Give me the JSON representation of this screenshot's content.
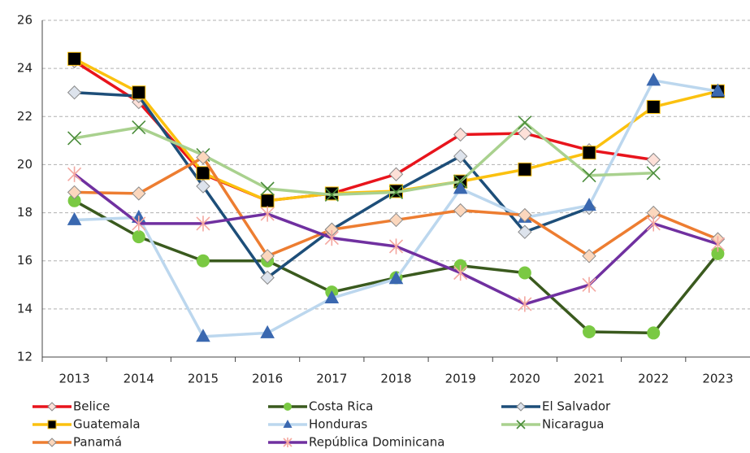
{
  "chart_data": {
    "type": "line",
    "categories": [
      "2013",
      "2014",
      "2015",
      "2016",
      "2017",
      "2018",
      "2019",
      "2020",
      "2021",
      "2022",
      "2023"
    ],
    "ylim": [
      12,
      26
    ],
    "yticks": [
      12,
      14,
      16,
      18,
      20,
      22,
      24,
      26
    ],
    "grid": true,
    "legend": "bottom",
    "series": [
      {
        "name": "Belice",
        "color": "#e8141c",
        "marker": "diamond",
        "marker_color": "#fde0d8",
        "values": [
          24.3,
          22.6,
          19.6,
          18.5,
          18.8,
          19.6,
          21.25,
          21.3,
          20.6,
          20.2,
          null
        ]
      },
      {
        "name": "Costa Rica",
        "color": "#3a5a1e",
        "marker": "circle",
        "marker_color": "#7ac943",
        "values": [
          18.5,
          17.0,
          16.0,
          16.0,
          14.7,
          15.3,
          15.8,
          15.5,
          13.05,
          13.0,
          16.3
        ]
      },
      {
        "name": "El Salvador",
        "color": "#1d4e79",
        "marker": "diamond",
        "marker_color": "#dde3ec",
        "values": [
          23.0,
          22.85,
          19.1,
          15.3,
          17.3,
          18.9,
          20.35,
          17.2,
          18.2,
          null,
          null
        ]
      },
      {
        "name": "Guatemala",
        "color": "#fbc10f",
        "marker": "square",
        "marker_color": "#000000",
        "values": [
          24.4,
          23.0,
          19.65,
          18.5,
          18.8,
          18.9,
          19.3,
          19.8,
          20.5,
          22.4,
          23.05
        ]
      },
      {
        "name": "Honduras",
        "color": "#bcd7ee",
        "marker": "triangle",
        "marker_color": "#3a68b0",
        "values": [
          17.7,
          17.8,
          12.85,
          13.0,
          14.45,
          15.25,
          19.0,
          17.8,
          18.3,
          23.5,
          23.05
        ]
      },
      {
        "name": "Nicaragua",
        "color": "#a9d18e",
        "marker": "x",
        "marker_color": "#4a8c3a",
        "values": [
          21.1,
          21.55,
          20.4,
          19.0,
          18.75,
          18.85,
          19.3,
          21.75,
          19.55,
          19.65,
          null
        ]
      },
      {
        "name": "Panamá",
        "color": "#ed7d31",
        "marker": "diamond",
        "marker_color": "#fbd7bd",
        "values": [
          18.85,
          18.8,
          20.3,
          16.2,
          17.3,
          17.7,
          18.1,
          17.9,
          16.2,
          18.0,
          16.9
        ]
      },
      {
        "name": "República Dominicana",
        "color": "#7030a0",
        "marker": "asterisk",
        "marker_color": "#f4a7a0",
        "values": [
          19.6,
          17.55,
          17.55,
          17.95,
          16.95,
          16.6,
          15.5,
          14.2,
          15.0,
          17.55,
          16.7
        ]
      }
    ]
  }
}
